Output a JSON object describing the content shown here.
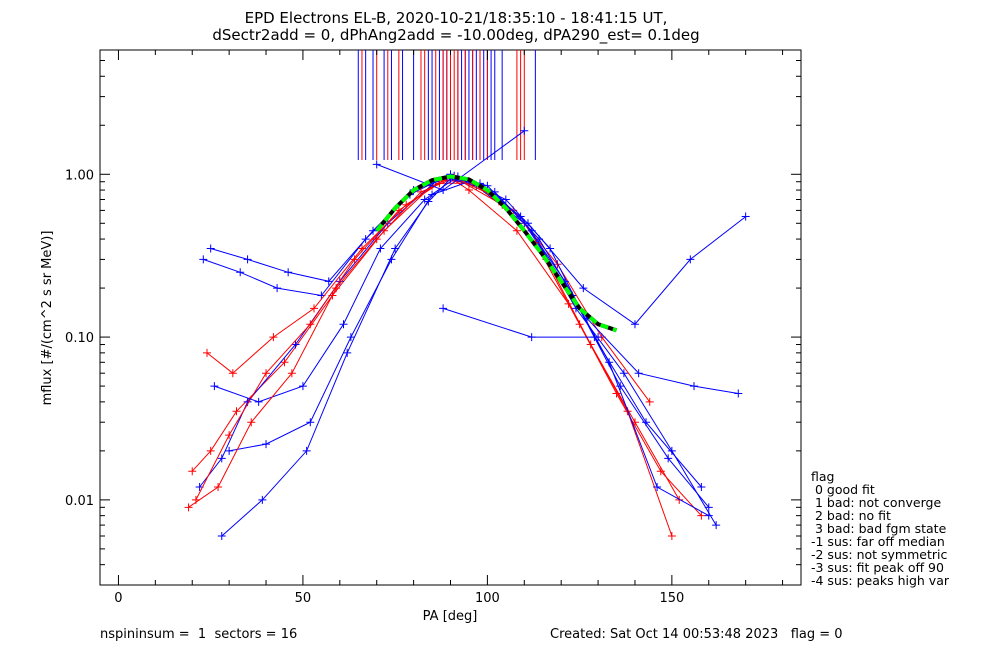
{
  "title_line1": "EPD Electrons EL-B, 2020-10-21/18:35:10 - 18:41:15 UT,",
  "title_line2": "dSectr2add = 0, dPhAng2add = -10.00deg, dPA290_est=   0.1deg",
  "footer_left": "nspininsum =  1  sectors = 16",
  "footer_right": "Created: Sat Oct 14 00:53:48 2023   flag = 0",
  "legend": {
    "title": "flag",
    "items": [
      " 0 good fit",
      " 1 bad: not converge",
      " 2 bad: no fit",
      " 3 bad: bad fgm state",
      "-1 sus: far off median",
      "-2 sus: not symmetric",
      "-3 sus: fit peak off 90",
      "-4 sus: peaks high var"
    ]
  },
  "colors": {
    "red": "#ff0000",
    "blue": "#0000ff",
    "fit_green": "#00ff00",
    "fit_black": "#000000"
  },
  "chart_data": {
    "type": "line",
    "xlabel": "PA [deg]",
    "ylabel": "mflux [#/(cm^2 s sr MeV)]",
    "xlim": [
      -5,
      185
    ],
    "ylim": [
      0.003,
      5.8
    ],
    "yscale": "log",
    "xticks": [
      0,
      50,
      100,
      150
    ],
    "xtick_labels": [
      "0",
      "50",
      "100",
      "150"
    ],
    "yticks": [
      0.01,
      0.1,
      1.0
    ],
    "ytick_labels": [
      "0.01",
      "0.10",
      "1.00"
    ],
    "series": [
      {
        "color": "red",
        "marker": "+",
        "x": [
          20,
          25,
          32,
          45,
          58,
          72,
          85,
          90,
          95,
          108,
          122,
          135,
          147,
          158
        ],
        "y": [
          0.015,
          0.02,
          0.035,
          0.07,
          0.18,
          0.45,
          0.85,
          0.95,
          0.8,
          0.45,
          0.16,
          0.045,
          0.015,
          0.008
        ]
      },
      {
        "color": "blue",
        "marker": "+",
        "x": [
          22,
          28,
          35,
          48,
          60,
          73,
          86,
          91,
          97,
          110,
          123,
          136,
          149,
          160
        ],
        "y": [
          0.012,
          0.018,
          0.04,
          0.09,
          0.22,
          0.5,
          0.9,
          0.98,
          0.85,
          0.5,
          0.18,
          0.05,
          0.018,
          0.009
        ]
      },
      {
        "color": "red",
        "marker": "+",
        "x": [
          21,
          30,
          40,
          52,
          64,
          76,
          88,
          93,
          104,
          116,
          128,
          140,
          152
        ],
        "y": [
          0.01,
          0.025,
          0.06,
          0.12,
          0.3,
          0.6,
          0.92,
          0.9,
          0.65,
          0.3,
          0.09,
          0.03,
          0.01
        ]
      },
      {
        "color": "blue",
        "marker": "+",
        "x": [
          23,
          33,
          43,
          55,
          67,
          79,
          90,
          100,
          112,
          124,
          137,
          150,
          162
        ],
        "y": [
          0.3,
          0.25,
          0.2,
          0.18,
          0.4,
          0.75,
          1.0,
          0.85,
          0.45,
          0.15,
          0.06,
          0.02,
          0.007
        ]
      },
      {
        "color": "blue",
        "marker": "+",
        "x": [
          25,
          35,
          46,
          57,
          69,
          80,
          89,
          99,
          111,
          126,
          140,
          155,
          170
        ],
        "y": [
          0.35,
          0.3,
          0.25,
          0.22,
          0.45,
          0.8,
          0.95,
          0.82,
          0.5,
          0.2,
          0.12,
          0.3,
          0.55
        ]
      },
      {
        "color": "red",
        "marker": "+",
        "x": [
          24,
          31,
          42,
          53,
          66,
          78,
          87,
          96,
          107,
          119,
          131,
          144
        ],
        "y": [
          0.08,
          0.06,
          0.1,
          0.15,
          0.35,
          0.65,
          0.88,
          0.88,
          0.6,
          0.28,
          0.1,
          0.04
        ]
      },
      {
        "color": "blue",
        "marker": "+",
        "x": [
          26,
          38,
          50,
          61,
          71,
          83,
          92,
          102,
          114,
          127,
          141,
          156,
          168
        ],
        "y": [
          0.05,
          0.04,
          0.05,
          0.12,
          0.35,
          0.7,
          0.97,
          0.78,
          0.4,
          0.13,
          0.06,
          0.05,
          0.045
        ]
      },
      {
        "color": "blue",
        "marker": "+",
        "x": [
          30,
          40,
          52,
          63,
          74,
          85,
          95,
          105,
          117,
          129,
          143,
          158
        ],
        "y": [
          0.02,
          0.022,
          0.03,
          0.1,
          0.3,
          0.75,
          0.9,
          0.7,
          0.35,
          0.1,
          0.03,
          0.012
        ]
      },
      {
        "color": "red",
        "marker": "+",
        "x": [
          19,
          27,
          36,
          47,
          59,
          70,
          82,
          91,
          101,
          113,
          125,
          138,
          150
        ],
        "y": [
          0.009,
          0.012,
          0.03,
          0.06,
          0.2,
          0.4,
          0.78,
          0.95,
          0.75,
          0.38,
          0.12,
          0.035,
          0.006
        ]
      },
      {
        "color": "blue",
        "marker": "+",
        "x": [
          28,
          39,
          51,
          62,
          75,
          84,
          90,
          98,
          109,
          121,
          133,
          146,
          160
        ],
        "y": [
          0.006,
          0.01,
          0.02,
          0.08,
          0.35,
          0.68,
          0.94,
          0.88,
          0.55,
          0.22,
          0.07,
          0.012,
          0.008
        ]
      },
      {
        "color": "blue",
        "marker": "+",
        "x": [
          70,
          88,
          110
        ],
        "y": [
          1.15,
          0.8,
          1.85
        ]
      },
      {
        "color": "blue",
        "marker": "+",
        "x": [
          88,
          112,
          130
        ],
        "y": [
          0.15,
          0.1,
          0.1
        ]
      }
    ],
    "fit": {
      "color": "green",
      "style": "dashed",
      "x": [
        70,
        75,
        80,
        85,
        90,
        95,
        100,
        105,
        110,
        115,
        120,
        125,
        130,
        135
      ],
      "y": [
        0.45,
        0.62,
        0.8,
        0.92,
        0.97,
        0.93,
        0.8,
        0.62,
        0.45,
        0.32,
        0.22,
        0.15,
        0.12,
        0.11
      ]
    },
    "vlines": [
      {
        "color": "blue",
        "x": [
          65,
          67,
          69,
          72,
          74,
          77,
          80,
          84,
          85,
          87,
          88,
          89,
          90,
          92,
          93,
          94,
          95,
          96,
          97,
          98,
          99,
          100,
          101,
          102,
          104,
          113
        ]
      },
      {
        "color": "red",
        "x": [
          66,
          70,
          73,
          76,
          82,
          83,
          86,
          88,
          89,
          90,
          91,
          92,
          94,
          96,
          98,
          100,
          108,
          109,
          110
        ]
      }
    ]
  }
}
